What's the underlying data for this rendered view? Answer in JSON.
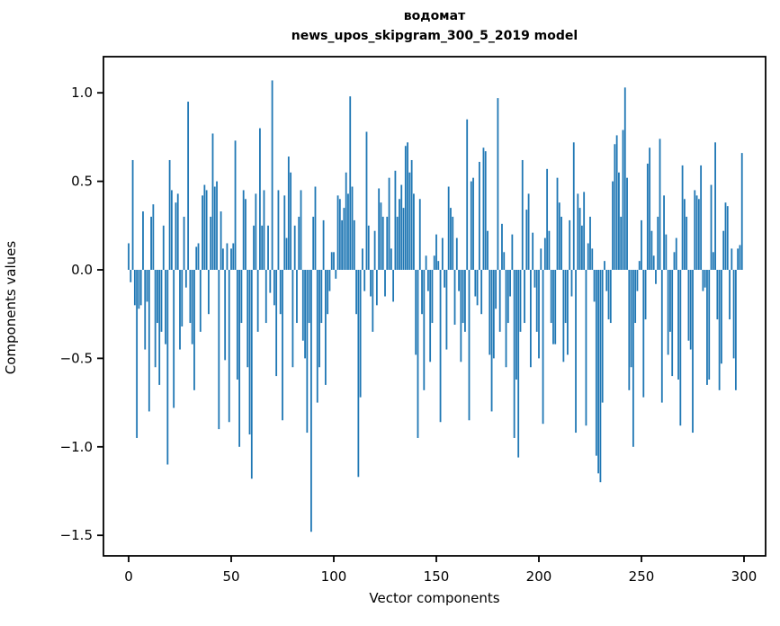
{
  "figure": {
    "title_line1": "водомат",
    "title_line2": "news_upos_skipgram_300_5_2019 model",
    "xlabel": "Vector components",
    "ylabel": "Components values"
  },
  "chart_data": {
    "type": "bar",
    "title": "водомат",
    "subtitle": "news_upos_skipgram_300_5_2019 model",
    "xlabel": "Vector components",
    "ylabel": "Components values",
    "bar_color": "#1f77b4",
    "spine_color": "#000000",
    "grid": false,
    "legend": "none",
    "xlim": [
      -12.3,
      310.5
    ],
    "ylim": [
      -1.62,
      1.2
    ],
    "x_ticks": [
      0,
      50,
      100,
      150,
      200,
      250,
      300
    ],
    "x_tick_labels": [
      "0",
      "50",
      "100",
      "150",
      "200",
      "250",
      "300"
    ],
    "y_ticks": [
      1.0,
      0.5,
      0.0,
      -0.5,
      -1.0,
      -1.5
    ],
    "y_tick_labels": [
      "1.0",
      "0.5",
      "0.0",
      "−0.5",
      "−1.0",
      "−1.5"
    ],
    "x_description": "vector component index 0..299",
    "values": [
      0.15,
      -0.07,
      0.62,
      -0.2,
      -0.95,
      -0.22,
      -0.2,
      0.33,
      -0.45,
      -0.18,
      -0.8,
      0.3,
      0.37,
      -0.55,
      -0.3,
      -0.65,
      -0.35,
      0.25,
      -0.42,
      -1.1,
      0.62,
      0.45,
      -0.78,
      0.38,
      0.43,
      -0.45,
      -0.32,
      0.3,
      -0.1,
      0.95,
      -0.3,
      -0.42,
      -0.68,
      0.13,
      0.15,
      -0.35,
      0.42,
      0.48,
      0.45,
      -0.25,
      0.3,
      0.77,
      0.47,
      0.5,
      -0.9,
      0.33,
      0.12,
      -0.51,
      0.15,
      -0.86,
      0.12,
      0.15,
      0.73,
      -0.62,
      -1.0,
      -0.3,
      0.45,
      0.4,
      -0.55,
      -0.93,
      -1.18,
      0.25,
      0.43,
      -0.35,
      0.8,
      0.25,
      0.45,
      -0.3,
      0.25,
      -0.13,
      1.07,
      -0.2,
      -0.6,
      0.45,
      -0.25,
      -0.85,
      0.42,
      0.18,
      0.64,
      0.55,
      -0.55,
      0.25,
      -0.3,
      0.3,
      0.45,
      -0.4,
      -0.5,
      -0.92,
      -0.3,
      -1.48,
      0.3,
      0.47,
      -0.75,
      -0.55,
      -0.3,
      0.28,
      -0.65,
      -0.25,
      -0.12,
      0.1,
      0.1,
      -0.05,
      0.42,
      0.4,
      0.28,
      0.35,
      0.55,
      0.43,
      0.98,
      0.47,
      0.28,
      -0.25,
      -1.17,
      -0.72,
      0.12,
      -0.12,
      0.78,
      0.25,
      -0.15,
      -0.35,
      0.22,
      -0.2,
      0.46,
      0.38,
      0.3,
      -0.15,
      0.3,
      0.52,
      0.12,
      -0.18,
      0.56,
      0.3,
      0.4,
      0.48,
      0.35,
      0.7,
      0.72,
      0.55,
      0.62,
      0.43,
      -0.48,
      -0.95,
      0.4,
      -0.25,
      -0.68,
      0.08,
      -0.12,
      -0.52,
      -0.3,
      0.08,
      0.2,
      0.05,
      -0.86,
      0.18,
      -0.1,
      -0.45,
      0.47,
      0.35,
      0.3,
      -0.31,
      0.18,
      -0.12,
      -0.52,
      -0.3,
      -0.35,
      0.85,
      -0.85,
      0.5,
      0.52,
      -0.15,
      -0.2,
      0.61,
      -0.25,
      0.69,
      0.67,
      0.22,
      -0.48,
      -0.8,
      -0.5,
      -0.22,
      0.97,
      -0.35,
      0.26,
      0.1,
      -0.55,
      -0.3,
      -0.15,
      0.2,
      -0.95,
      -0.62,
      -1.06,
      -0.35,
      0.62,
      -0.3,
      0.34,
      0.43,
      -0.55,
      0.21,
      -0.1,
      -0.35,
      -0.5,
      0.12,
      -0.87,
      0.18,
      0.57,
      0.22,
      -0.3,
      -0.42,
      -0.42,
      0.52,
      0.38,
      0.3,
      -0.52,
      -0.3,
      -0.48,
      0.28,
      -0.15,
      0.72,
      -0.92,
      0.43,
      0.35,
      0.25,
      0.44,
      -0.88,
      0.15,
      0.3,
      0.12,
      -0.18,
      -1.05,
      -1.15,
      -1.2,
      -0.75,
      0.05,
      -0.12,
      -0.28,
      -0.3,
      0.5,
      0.71,
      0.76,
      0.55,
      0.3,
      0.79,
      1.03,
      0.52,
      -0.68,
      -0.55,
      -1.0,
      -0.3,
      -0.12,
      0.05,
      0.28,
      -0.72,
      -0.28,
      0.6,
      0.69,
      0.22,
      0.08,
      -0.08,
      0.3,
      0.74,
      -0.75,
      0.42,
      0.2,
      -0.48,
      -0.35,
      -0.6,
      0.1,
      0.18,
      -0.62,
      -0.88,
      0.59,
      0.4,
      0.3,
      -0.4,
      -0.45,
      -0.92,
      0.45,
      0.42,
      0.4,
      0.59,
      -0.12,
      -0.1,
      -0.65,
      -0.62,
      0.48,
      0.1,
      0.72,
      -0.28,
      -0.68,
      -0.53,
      0.22,
      0.38,
      0.36,
      -0.28,
      0.12,
      -0.5,
      -0.68,
      0.12,
      0.14,
      0.66
    ]
  }
}
